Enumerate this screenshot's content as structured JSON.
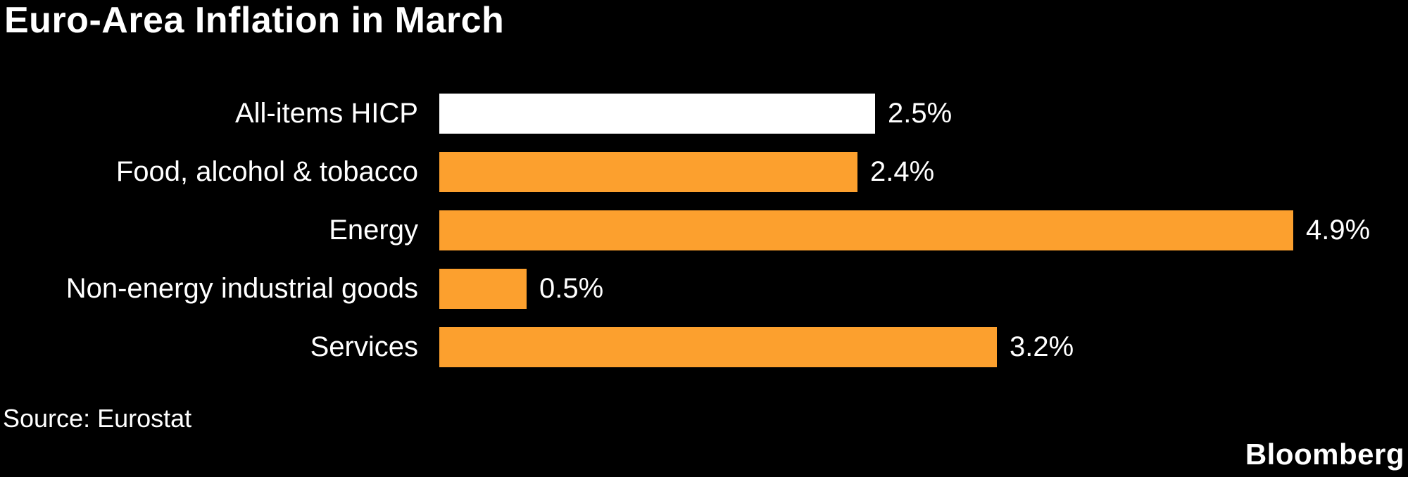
{
  "chart_data": {
    "type": "bar",
    "orientation": "horizontal",
    "title": "Euro-Area Inflation in March",
    "categories": [
      "All-items HICP",
      "Food, alcohol & tobacco",
      "Energy",
      "Non-energy industrial goods",
      "Services"
    ],
    "values": [
      2.5,
      2.4,
      4.9,
      0.5,
      3.2
    ],
    "value_labels": [
      "2.5%",
      "2.4%",
      "4.9%",
      "0.5%",
      "3.2%"
    ],
    "bar_colors": [
      "#ffffff",
      "#fca02e",
      "#fca02e",
      "#fca02e",
      "#fca02e"
    ],
    "value_suffix": "%",
    "xlim": [
      0,
      4.9
    ],
    "grid": false,
    "legend": false,
    "axis_ticks": "none",
    "label_position": "bar-end"
  },
  "footer": {
    "source": "Source: Eurostat",
    "brand": "Bloomberg"
  },
  "colors": {
    "background": "#000000",
    "text": "#ffffff",
    "accent_orange": "#fca02e",
    "highlight_white": "#ffffff"
  }
}
